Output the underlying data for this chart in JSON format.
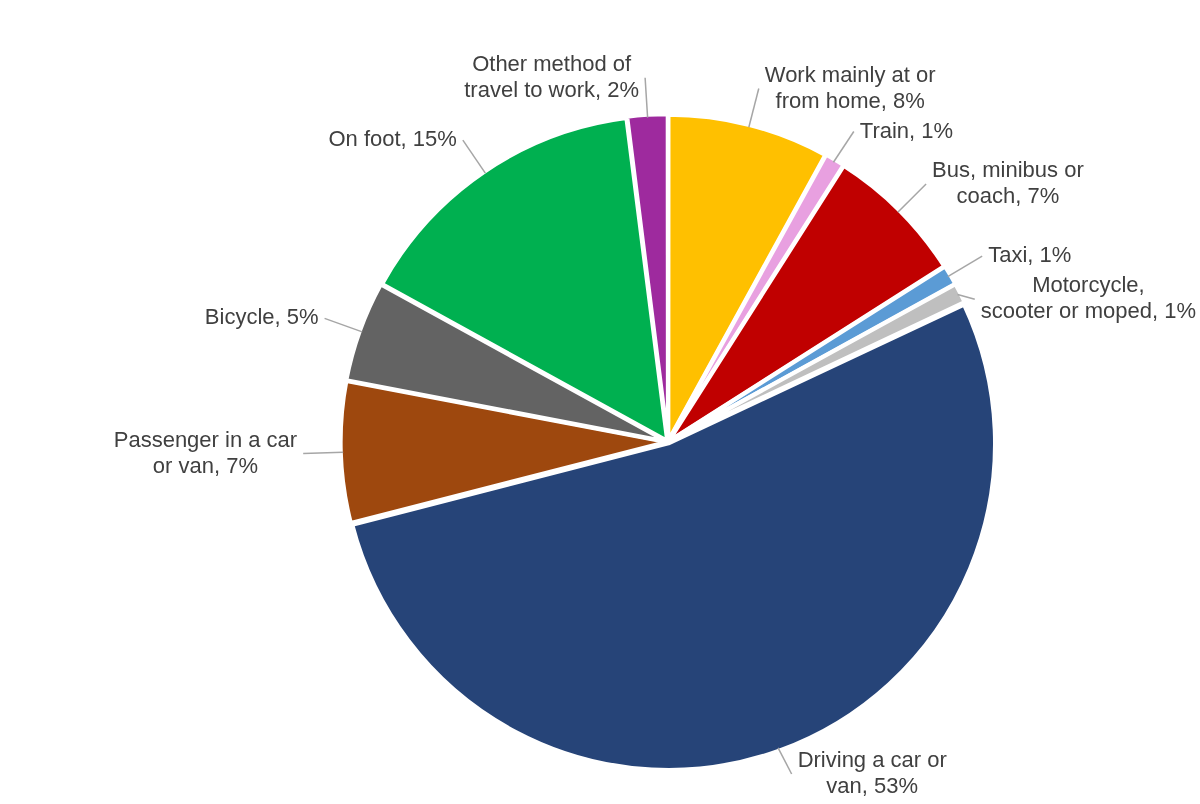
{
  "chart_data": {
    "type": "pie",
    "categories": [
      "Work mainly at or from home",
      "Train",
      "Bus, minibus or coach",
      "Taxi",
      "Motorcycle, scooter or moped",
      "Driving a car or van",
      "Passenger in a car or van",
      "Bicycle",
      "On foot",
      "Other method of travel to work"
    ],
    "values": [
      8,
      1,
      7,
      1,
      1,
      53,
      7,
      5,
      15,
      2
    ],
    "value_labels": [
      "8%",
      "1%",
      "7%",
      "1%",
      "1%",
      "53%",
      "7%",
      "5%",
      "15%",
      "2%"
    ],
    "colors": [
      "#ffc000",
      "#e8a0e0",
      "#c00000",
      "#5b9bd5",
      "#bfbfbf",
      "#264478",
      "#9e480e",
      "#636363",
      "#00b050",
      "#9e2a9e"
    ],
    "legend": false
  }
}
